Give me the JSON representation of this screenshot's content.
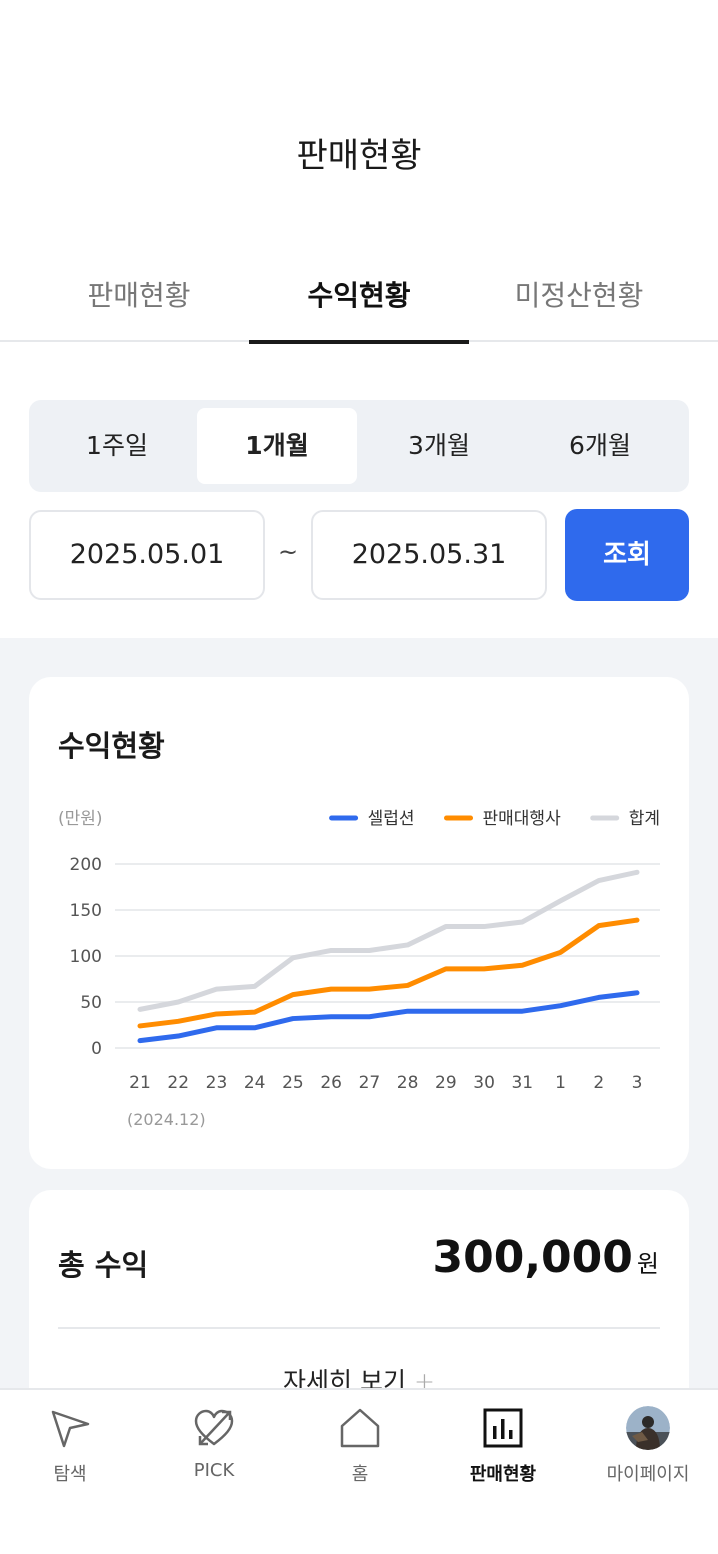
{
  "header": {
    "title": "판매현황"
  },
  "tabs": [
    {
      "label": "판매현황",
      "active": false
    },
    {
      "label": "수익현황",
      "active": true
    },
    {
      "label": "미정산현황",
      "active": false
    }
  ],
  "period": {
    "options": [
      "1주일",
      "1개월",
      "3개월",
      "6개월"
    ],
    "selected": "1개월"
  },
  "date_range": {
    "start": "2025.05.01",
    "separator": "~",
    "end": "2025.05.31",
    "search_label": "조회"
  },
  "chart_card": {
    "title": "수익현황"
  },
  "chart_data": {
    "type": "line",
    "unit_label": "(만원)",
    "x_caption": "(2024.12)",
    "categories": [
      "21",
      "22",
      "23",
      "24",
      "25",
      "26",
      "27",
      "28",
      "29",
      "30",
      "31",
      "1",
      "2",
      "3"
    ],
    "ylim": [
      0,
      200
    ],
    "yticks": [
      200,
      150,
      100,
      50,
      0
    ],
    "grid": true,
    "legend_position": "top-right",
    "series": [
      {
        "name": "셀럽션",
        "color": "#2f6aed",
        "values": [
          8,
          13,
          22,
          22,
          32,
          34,
          34,
          40,
          40,
          40,
          40,
          46,
          55,
          60
        ]
      },
      {
        "name": "판매대행사",
        "color": "#ff8c00",
        "values": [
          24,
          29,
          37,
          39,
          58,
          64,
          64,
          68,
          86,
          86,
          90,
          104,
          133,
          139
        ]
      },
      {
        "name": "합계",
        "color": "#d5d7dc",
        "values": [
          42,
          50,
          64,
          67,
          98,
          106,
          106,
          112,
          132,
          132,
          137,
          160,
          182,
          191
        ]
      }
    ]
  },
  "total": {
    "label": "총 수익",
    "value": "300,000",
    "unit": "원",
    "detail_label": "자세히 보기",
    "detail_icon": "+"
  },
  "bottom_nav": [
    {
      "label": "탐색",
      "icon": "navigation-arrow-icon",
      "active": false
    },
    {
      "label": "PICK",
      "icon": "heart-arrow-icon",
      "active": false
    },
    {
      "label": "홈",
      "icon": "home-icon",
      "active": false
    },
    {
      "label": "판매현황",
      "icon": "bar-chart-icon",
      "active": true
    },
    {
      "label": "마이페이지",
      "icon": "avatar",
      "active": false
    }
  ]
}
